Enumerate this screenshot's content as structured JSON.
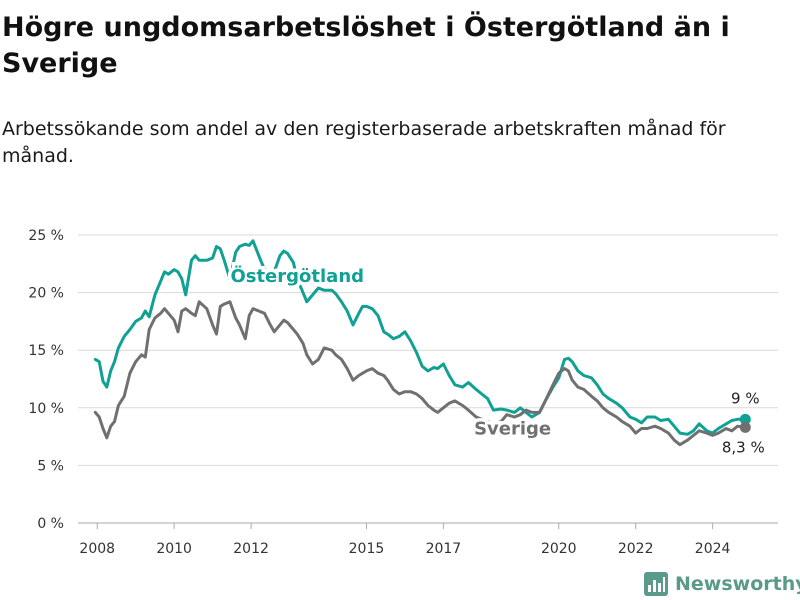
{
  "title": "Högre ungdomsarbetslöshet i Östergötland än i Sverige",
  "subtitle": "Arbetssökande som andel av den registerbaserade arbetskraften månad för månad.",
  "brand": {
    "name": "Newsworthy",
    "icon": "bar-chart-logo-icon",
    "color": "#5a9a8a"
  },
  "chart_data": {
    "type": "line",
    "ylim": [
      0,
      25
    ],
    "xlim": [
      2007.5,
      2025.7
    ],
    "yticks": [
      {
        "value": 0,
        "label": "0 %"
      },
      {
        "value": 5,
        "label": "5 %"
      },
      {
        "value": 10,
        "label": "10 %"
      },
      {
        "value": 15,
        "label": "15 %"
      },
      {
        "value": 20,
        "label": "20 %"
      },
      {
        "value": 25,
        "label": "25 %"
      }
    ],
    "xticks": [
      {
        "value": 2008,
        "label": "2008"
      },
      {
        "value": 2010,
        "label": "2010"
      },
      {
        "value": 2012,
        "label": "2012"
      },
      {
        "value": 2015,
        "label": "2015"
      },
      {
        "value": 2017,
        "label": "2017"
      },
      {
        "value": 2020,
        "label": "2020"
      },
      {
        "value": 2022,
        "label": "2022"
      },
      {
        "value": 2024,
        "label": "2024"
      }
    ],
    "grid": true,
    "legend": "inline labels",
    "series": [
      {
        "name": "Östergötland",
        "color": "#10a194",
        "label_position": "above",
        "end_label": "9 %",
        "x": [
          2007.95,
          2008.05,
          2008.15,
          2008.25,
          2008.35,
          2008.45,
          2008.55,
          2008.7,
          2008.85,
          2009.0,
          2009.15,
          2009.25,
          2009.35,
          2009.5,
          2009.65,
          2009.75,
          2009.85,
          2010.0,
          2010.1,
          2010.2,
          2010.3,
          2010.45,
          2010.55,
          2010.65,
          2010.85,
          2011.0,
          2011.1,
          2011.2,
          2011.3,
          2011.45,
          2011.6,
          2011.7,
          2011.85,
          2011.95,
          2012.05,
          2012.2,
          2012.35,
          2012.5,
          2012.6,
          2012.75,
          2012.85,
          2012.95,
          2013.1,
          2013.2,
          2013.35,
          2013.45,
          2013.6,
          2013.75,
          2013.9,
          2014.1,
          2014.2,
          2014.35,
          2014.5,
          2014.65,
          2014.8,
          2014.9,
          2015.0,
          2015.15,
          2015.3,
          2015.45,
          2015.55,
          2015.7,
          2015.85,
          2016.0,
          2016.15,
          2016.3,
          2016.45,
          2016.6,
          2016.75,
          2016.85,
          2017.0,
          2017.15,
          2017.3,
          2017.5,
          2017.65,
          2017.85,
          2018.0,
          2018.15,
          2018.3,
          2018.5,
          2018.65,
          2018.85,
          2019.0,
          2019.15,
          2019.3,
          2019.5,
          2019.65,
          2019.85,
          2020.0,
          2020.15,
          2020.25,
          2020.35,
          2020.5,
          2020.65,
          2020.85,
          2021.0,
          2021.15,
          2021.3,
          2021.5,
          2021.65,
          2021.85,
          2022.0,
          2022.15,
          2022.3,
          2022.5,
          2022.65,
          2022.85,
          2023.0,
          2023.15,
          2023.35,
          2023.5,
          2023.65,
          2023.85,
          2024.0,
          2024.15,
          2024.35,
          2024.5,
          2024.65,
          2024.85
        ],
        "values": [
          14.2,
          14.0,
          12.3,
          11.8,
          13.2,
          14.0,
          15.2,
          16.2,
          16.8,
          17.5,
          17.8,
          18.4,
          17.9,
          19.8,
          21.0,
          21.8,
          21.6,
          22.0,
          21.8,
          21.2,
          19.8,
          22.8,
          23.2,
          22.8,
          22.8,
          23.0,
          24.0,
          23.8,
          22.8,
          21.2,
          23.5,
          24.0,
          24.2,
          24.1,
          24.5,
          23.2,
          22.0,
          21.2,
          21.8,
          23.2,
          23.6,
          23.4,
          22.6,
          21.2,
          20.0,
          19.2,
          19.8,
          20.4,
          20.2,
          20.2,
          19.9,
          19.2,
          18.4,
          17.2,
          18.2,
          18.8,
          18.8,
          18.6,
          18.0,
          16.6,
          16.4,
          16.0,
          16.2,
          16.6,
          15.8,
          14.8,
          13.6,
          13.2,
          13.5,
          13.4,
          13.8,
          12.8,
          12.0,
          11.8,
          12.2,
          11.6,
          11.2,
          10.8,
          9.8,
          9.9,
          9.8,
          9.6,
          10.0,
          9.6,
          9.2,
          9.6,
          10.6,
          11.8,
          12.6,
          14.2,
          14.3,
          14.0,
          13.2,
          12.8,
          12.6,
          12.0,
          11.2,
          10.8,
          10.4,
          10.0,
          9.2,
          9.0,
          8.7,
          9.2,
          9.2,
          8.9,
          9.0,
          8.4,
          7.8,
          7.7,
          8.0,
          8.6,
          8.0,
          7.8,
          8.2,
          8.6,
          8.9,
          9.0,
          9.0
        ]
      },
      {
        "name": "Sverige",
        "color": "#707070",
        "label_position": "below",
        "end_label": "8,3 %",
        "x": [
          2007.95,
          2008.05,
          2008.15,
          2008.25,
          2008.35,
          2008.45,
          2008.55,
          2008.7,
          2008.85,
          2009.0,
          2009.15,
          2009.25,
          2009.35,
          2009.5,
          2009.65,
          2009.75,
          2009.85,
          2010.0,
          2010.1,
          2010.2,
          2010.3,
          2010.45,
          2010.55,
          2010.65,
          2010.85,
          2011.0,
          2011.1,
          2011.2,
          2011.3,
          2011.45,
          2011.6,
          2011.7,
          2011.85,
          2011.95,
          2012.05,
          2012.2,
          2012.35,
          2012.5,
          2012.6,
          2012.75,
          2012.85,
          2012.95,
          2013.1,
          2013.2,
          2013.35,
          2013.45,
          2013.6,
          2013.75,
          2013.9,
          2014.1,
          2014.2,
          2014.35,
          2014.5,
          2014.65,
          2014.8,
          2014.9,
          2015.0,
          2015.15,
          2015.3,
          2015.45,
          2015.55,
          2015.7,
          2015.85,
          2016.0,
          2016.15,
          2016.3,
          2016.45,
          2016.6,
          2016.75,
          2016.85,
          2017.0,
          2017.15,
          2017.3,
          2017.5,
          2017.65,
          2017.85,
          2018.0,
          2018.15,
          2018.3,
          2018.5,
          2018.65,
          2018.85,
          2019.0,
          2019.15,
          2019.3,
          2019.5,
          2019.65,
          2019.85,
          2020.0,
          2020.15,
          2020.25,
          2020.35,
          2020.5,
          2020.65,
          2020.85,
          2021.0,
          2021.15,
          2021.3,
          2021.5,
          2021.65,
          2021.85,
          2022.0,
          2022.15,
          2022.3,
          2022.5,
          2022.65,
          2022.85,
          2023.0,
          2023.15,
          2023.35,
          2023.5,
          2023.65,
          2023.85,
          2024.0,
          2024.15,
          2024.35,
          2024.5,
          2024.65,
          2024.85
        ],
        "values": [
          9.6,
          9.2,
          8.2,
          7.4,
          8.4,
          8.8,
          10.2,
          11.0,
          13.0,
          14.0,
          14.6,
          14.4,
          16.8,
          17.8,
          18.2,
          18.6,
          18.2,
          17.6,
          16.6,
          18.4,
          18.6,
          18.2,
          18.0,
          19.2,
          18.6,
          17.2,
          16.4,
          18.8,
          19.0,
          19.2,
          17.8,
          17.2,
          16.0,
          18.0,
          18.6,
          18.4,
          18.2,
          17.2,
          16.6,
          17.2,
          17.6,
          17.4,
          16.8,
          16.4,
          15.6,
          14.6,
          13.8,
          14.2,
          15.2,
          15.0,
          14.6,
          14.2,
          13.4,
          12.4,
          12.8,
          13.0,
          13.2,
          13.4,
          13.0,
          12.8,
          12.4,
          11.6,
          11.2,
          11.4,
          11.4,
          11.2,
          10.8,
          10.2,
          9.8,
          9.6,
          10.0,
          10.4,
          10.6,
          10.2,
          9.8,
          9.2,
          9.0,
          8.8,
          8.6,
          8.8,
          9.4,
          9.2,
          9.4,
          9.8,
          9.6,
          9.6,
          10.6,
          12.0,
          13.0,
          13.4,
          13.2,
          12.4,
          11.8,
          11.6,
          11.0,
          10.6,
          10.0,
          9.6,
          9.2,
          8.8,
          8.4,
          7.8,
          8.2,
          8.2,
          8.4,
          8.2,
          7.8,
          7.2,
          6.8,
          7.2,
          7.6,
          8.0,
          7.8,
          7.6,
          7.8,
          8.2,
          8.0,
          8.4,
          8.3
        ]
      }
    ]
  }
}
